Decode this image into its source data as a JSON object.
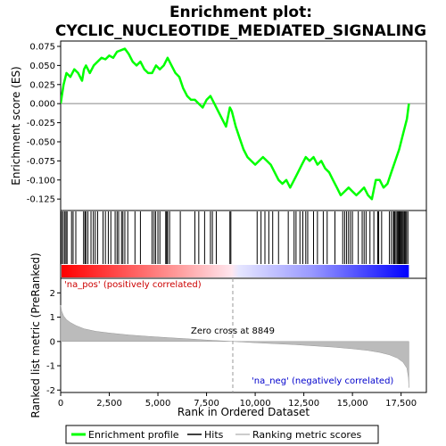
{
  "chart_data": {
    "type": "line",
    "title": "Enrichment plot:\nCYCLIC_NUCLEOTIDE_MEDIATED_SIGNALING",
    "title_lines": [
      "Enrichment plot:",
      "CYCLIC_NUCLEOTIDE_MEDIATED_SIGNALING"
    ],
    "top_panel": {
      "ylabel": "Enrichment score (ES)",
      "ylim": [
        -0.14,
        0.082
      ],
      "yticks": [
        0.075,
        0.05,
        0.025,
        0.0,
        -0.025,
        -0.05,
        -0.075,
        -0.1,
        -0.125
      ],
      "ytick_labels": [
        "0.075",
        "0.050",
        "0.025",
        "0.000",
        "-0.025",
        "-0.050",
        "-0.075",
        "-0.100",
        "-0.125"
      ],
      "grid": false,
      "series": [
        {
          "name": "Enrichment profile",
          "color": "#00ff00",
          "x": [
            0,
            150,
            300,
            500,
            700,
            900,
            1100,
            1200,
            1300,
            1500,
            1700,
            1900,
            2100,
            2300,
            2500,
            2700,
            2900,
            3100,
            3300,
            3500,
            3700,
            3900,
            4100,
            4300,
            4500,
            4700,
            4900,
            5100,
            5300,
            5500,
            5700,
            5900,
            6100,
            6300,
            6500,
            6700,
            6900,
            7100,
            7300,
            7500,
            7700,
            7900,
            8100,
            8300,
            8500,
            8700,
            8800,
            9000,
            9200,
            9400,
            9600,
            9800,
            10000,
            10200,
            10400,
            10600,
            10800,
            11000,
            11200,
            11400,
            11600,
            11800,
            12000,
            12200,
            12400,
            12600,
            12800,
            13000,
            13200,
            13400,
            13600,
            13800,
            14000,
            14200,
            14400,
            14600,
            14800,
            15000,
            15200,
            15400,
            15600,
            15800,
            16000,
            16200,
            16400,
            16600,
            16800,
            17000,
            17200,
            17400,
            17600,
            17800,
            17900
          ],
          "y": [
            0.0,
            0.025,
            0.04,
            0.035,
            0.045,
            0.04,
            0.03,
            0.045,
            0.05,
            0.04,
            0.05,
            0.055,
            0.06,
            0.058,
            0.063,
            0.06,
            0.068,
            0.07,
            0.072,
            0.065,
            0.055,
            0.05,
            0.055,
            0.045,
            0.04,
            0.04,
            0.05,
            0.045,
            0.05,
            0.06,
            0.05,
            0.04,
            0.035,
            0.02,
            0.01,
            0.005,
            0.005,
            0.0,
            -0.005,
            0.005,
            0.01,
            0.0,
            -0.01,
            -0.02,
            -0.03,
            -0.005,
            -0.01,
            -0.03,
            -0.045,
            -0.06,
            -0.07,
            -0.075,
            -0.08,
            -0.075,
            -0.07,
            -0.075,
            -0.08,
            -0.09,
            -0.1,
            -0.105,
            -0.1,
            -0.11,
            -0.1,
            -0.09,
            -0.08,
            -0.07,
            -0.075,
            -0.07,
            -0.08,
            -0.075,
            -0.085,
            -0.09,
            -0.1,
            -0.11,
            -0.12,
            -0.115,
            -0.11,
            -0.115,
            -0.12,
            -0.115,
            -0.11,
            -0.12,
            -0.125,
            -0.1,
            -0.1,
            -0.11,
            -0.105,
            -0.09,
            -0.075,
            -0.06,
            -0.04,
            -0.02,
            0.0
          ]
        }
      ]
    },
    "hits_panel": {
      "hit_positions": [
        40,
        120,
        200,
        270,
        330,
        560,
        640,
        780,
        1180,
        1250,
        1300,
        1400,
        1560,
        1680,
        1780,
        1900,
        2180,
        2300,
        2450,
        2580,
        2800,
        2900,
        2980,
        3130,
        3200,
        3300,
        3450,
        3820,
        4100,
        4700,
        4800,
        4880,
        5000,
        5100,
        5400,
        5450,
        5500,
        5600,
        6150,
        6900,
        7100,
        7400,
        7700,
        7800,
        8000,
        8700,
        8750,
        10100,
        10300,
        10500,
        10700,
        10900,
        11200,
        11700,
        12000,
        12100,
        12300,
        12450,
        12600,
        12700,
        13000,
        13200,
        13500,
        13700,
        14100,
        14500,
        14600,
        14700,
        14800,
        14900,
        15000,
        15300,
        15500,
        15600,
        15700,
        15900,
        16100,
        16300,
        16350,
        16500,
        16900,
        17000,
        17100,
        17150,
        17200,
        17280,
        17330,
        17380,
        17420,
        17470,
        17520,
        17570,
        17620,
        17680,
        17730,
        17780,
        17850
      ]
    },
    "bottom_panel": {
      "ylabel": "Ranked list metric (PreRanked)",
      "xlabel": "Rank in Ordered Dataset",
      "xlim": [
        0,
        18800
      ],
      "xticks": [
        0,
        2500,
        5000,
        7500,
        10000,
        12500,
        15000,
        17500
      ],
      "xtick_labels": [
        "0",
        "2,500",
        "5,000",
        "7,500",
        "10,000",
        "12,500",
        "15,000",
        "17,500"
      ],
      "ylim": [
        -2.1,
        2.6
      ],
      "yticks": [
        2,
        1,
        0,
        -1,
        -2
      ],
      "ytick_labels": [
        "2",
        "1",
        "0",
        "-1",
        "-2"
      ],
      "zero_cross": 8849,
      "zero_cross_label": "Zero cross at 8849",
      "pos_label": "'na_pos' (positively correlated)",
      "neg_label": "'na_neg' (negatively correlated)",
      "pos_label_color": "#cc0000",
      "neg_label_color": "#0000cc",
      "metric_curve": {
        "x": [
          0,
          50,
          150,
          300,
          500,
          800,
          1200,
          1800,
          2500,
          3500,
          4500,
          5500,
          6500,
          7500,
          8849,
          10000,
          11000,
          12000,
          13000,
          14000,
          15000,
          15800,
          16400,
          16900,
          17300,
          17600,
          17800,
          17880,
          17900
        ],
        "y": [
          1.5,
          1.25,
          1.05,
          0.9,
          0.78,
          0.65,
          0.52,
          0.42,
          0.35,
          0.27,
          0.21,
          0.16,
          0.11,
          0.06,
          0.0,
          -0.05,
          -0.09,
          -0.13,
          -0.18,
          -0.23,
          -0.3,
          -0.37,
          -0.45,
          -0.55,
          -0.68,
          -0.85,
          -1.1,
          -1.5,
          -1.9
        ]
      }
    },
    "legend": {
      "items": [
        {
          "label": "Enrichment profile",
          "color": "#00ff00",
          "kind": "thick-line"
        },
        {
          "label": "Hits",
          "color": "#000000",
          "kind": "line"
        },
        {
          "label": "Ranking metric scores",
          "color": "#bbbbbb",
          "kind": "line"
        }
      ],
      "placement": "bottom"
    }
  }
}
